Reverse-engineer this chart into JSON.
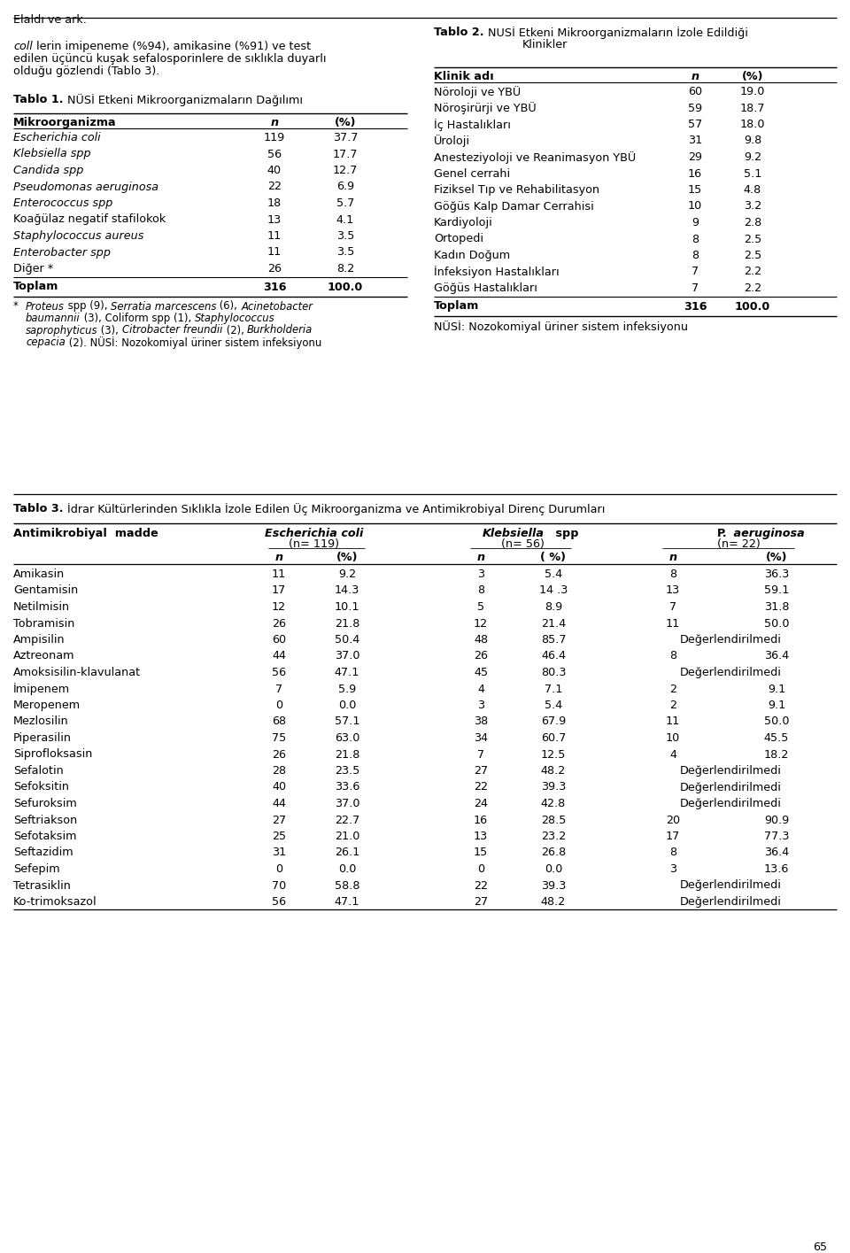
{
  "page_header": "Elaldı ve ark.",
  "page_number": "65",
  "tablo1_rows": [
    {
      "name": "Escherichia coli",
      "italic": true,
      "n": "119",
      "pct": "37.7"
    },
    {
      "name": "Klebsiella spp",
      "italic": true,
      "n": "56",
      "pct": "17.7"
    },
    {
      "name": "Candida spp",
      "italic": true,
      "n": "40",
      "pct": "12.7"
    },
    {
      "name": "Pseudomonas aeruginosa",
      "italic": true,
      "n": "22",
      "pct": "6.9"
    },
    {
      "name": "Enterococcus spp",
      "italic": true,
      "n": "18",
      "pct": "5.7"
    },
    {
      "name": "Koağülaz negatif stafilokok",
      "italic": false,
      "n": "13",
      "pct": "4.1"
    },
    {
      "name": "Staphylococcus aureus",
      "italic": true,
      "n": "11",
      "pct": "3.5"
    },
    {
      "name": "Enterobacter spp",
      "italic": true,
      "n": "11",
      "pct": "3.5"
    },
    {
      "name": "Diğer *",
      "italic": false,
      "n": "26",
      "pct": "8.2"
    }
  ],
  "tablo2_rows": [
    {
      "name": "Nöroloji ve YBÜ",
      "n": "60",
      "pct": "19.0"
    },
    {
      "name": "Nöroşirürji ve YBÜ",
      "n": "59",
      "pct": "18.7"
    },
    {
      "name": "İç Hastalıkları",
      "n": "57",
      "pct": "18.0"
    },
    {
      "name": "Üroloji",
      "n": "31",
      "pct": "9.8"
    },
    {
      "name": "Anesteziyoloji ve Reanimasyon YBÜ",
      "n": "29",
      "pct": "9.2"
    },
    {
      "name": "Genel cerrahi",
      "n": "16",
      "pct": "5.1"
    },
    {
      "name": "Fiziksel Tıp ve Rehabilitasyon",
      "n": "15",
      "pct": "4.8"
    },
    {
      "name": "Göğüs Kalp Damar Cerrahisi",
      "n": "10",
      "pct": "3.2"
    },
    {
      "name": "Kardiyoloji",
      "n": "9",
      "pct": "2.8"
    },
    {
      "name": "Ortopedi",
      "n": "8",
      "pct": "2.5"
    },
    {
      "name": "Kadın Doğum",
      "n": "8",
      "pct": "2.5"
    },
    {
      "name": "İnfeksiyon Hastalıkları",
      "n": "7",
      "pct": "2.2"
    },
    {
      "name": "Göğüs Hastalıkları",
      "n": "7",
      "pct": "2.2"
    }
  ],
  "tablo3_rows": [
    {
      "drug": "Amikasin",
      "ec_n": "11",
      "ec_p": "9.2",
      "kl_n": "3",
      "kl_p": "5.4",
      "pa_n": "8",
      "pa_p": "36.3"
    },
    {
      "drug": "Gentamisin",
      "ec_n": "17",
      "ec_p": "14.3",
      "kl_n": "8",
      "kl_p": "14 .3",
      "pa_n": "13",
      "pa_p": "59.1"
    },
    {
      "drug": "Netilmisin",
      "ec_n": "12",
      "ec_p": "10.1",
      "kl_n": "5",
      "kl_p": "8.9",
      "pa_n": "7",
      "pa_p": "31.8"
    },
    {
      "drug": "Tobramisin",
      "ec_n": "26",
      "ec_p": "21.8",
      "kl_n": "12",
      "kl_p": "21.4",
      "pa_n": "11",
      "pa_p": "50.0"
    },
    {
      "drug": "Ampisilin",
      "ec_n": "60",
      "ec_p": "50.4",
      "kl_n": "48",
      "kl_p": "85.7",
      "pa_n": "Değerlendirilmedi",
      "pa_p": ""
    },
    {
      "drug": "Aztreonam",
      "ec_n": "44",
      "ec_p": "37.0",
      "kl_n": "26",
      "kl_p": "46.4",
      "pa_n": "8",
      "pa_p": "36.4"
    },
    {
      "drug": "Amoksisilin-klavulanat",
      "ec_n": "56",
      "ec_p": "47.1",
      "kl_n": "45",
      "kl_p": "80.3",
      "pa_n": "Değerlendirilmedi",
      "pa_p": ""
    },
    {
      "drug": "İmipenem",
      "ec_n": "7",
      "ec_p": "5.9",
      "kl_n": "4",
      "kl_p": "7.1",
      "pa_n": "2",
      "pa_p": "9.1"
    },
    {
      "drug": "Meropenem",
      "ec_n": "0",
      "ec_p": "0.0",
      "kl_n": "3",
      "kl_p": "5.4",
      "pa_n": "2",
      "pa_p": "9.1"
    },
    {
      "drug": "Mezlosilin",
      "ec_n": "68",
      "ec_p": "57.1",
      "kl_n": "38",
      "kl_p": "67.9",
      "pa_n": "11",
      "pa_p": "50.0"
    },
    {
      "drug": "Piperasilin",
      "ec_n": "75",
      "ec_p": "63.0",
      "kl_n": "34",
      "kl_p": "60.7",
      "pa_n": "10",
      "pa_p": "45.5"
    },
    {
      "drug": "Siprofloksasin",
      "ec_n": "26",
      "ec_p": "21.8",
      "kl_n": "7",
      "kl_p": "12.5",
      "pa_n": "4",
      "pa_p": "18.2"
    },
    {
      "drug": "Sefalotin",
      "ec_n": "28",
      "ec_p": "23.5",
      "kl_n": "27",
      "kl_p": "48.2",
      "pa_n": "Değerlendirilmedi",
      "pa_p": ""
    },
    {
      "drug": "Sefoksitin",
      "ec_n": "40",
      "ec_p": "33.6",
      "kl_n": "22",
      "kl_p": "39.3",
      "pa_n": "Değerlendirilmedi",
      "pa_p": ""
    },
    {
      "drug": "Sefuroksim",
      "ec_n": "44",
      "ec_p": "37.0",
      "kl_n": "24",
      "kl_p": "42.8",
      "pa_n": "Değerlendirilmedi",
      "pa_p": ""
    },
    {
      "drug": "Seftriakson",
      "ec_n": "27",
      "ec_p": "22.7",
      "kl_n": "16",
      "kl_p": "28.5",
      "pa_n": "20",
      "pa_p": "90.9"
    },
    {
      "drug": "Sefotaksim",
      "ec_n": "25",
      "ec_p": "21.0",
      "kl_n": "13",
      "kl_p": "23.2",
      "pa_n": "17",
      "pa_p": "77.3"
    },
    {
      "drug": "Seftazidim",
      "ec_n": "31",
      "ec_p": "26.1",
      "kl_n": "15",
      "kl_p": "26.8",
      "pa_n": "8",
      "pa_p": "36.4"
    },
    {
      "drug": "Sefepim",
      "ec_n": "0",
      "ec_p": "0.0",
      "kl_n": "0",
      "kl_p": "0.0",
      "pa_n": "3",
      "pa_p": "13.6"
    },
    {
      "drug": "Tetrasiklin",
      "ec_n": "70",
      "ec_p": "58.8",
      "kl_n": "22",
      "kl_p": "39.3",
      "pa_n": "Değerlendirilmedi",
      "pa_p": ""
    },
    {
      "drug": "Ko-trimoksazol",
      "ec_n": "56",
      "ec_p": "47.1",
      "kl_n": "27",
      "kl_p": "48.2",
      "pa_n": "Değerlendirilmedi",
      "pa_p": ""
    }
  ]
}
